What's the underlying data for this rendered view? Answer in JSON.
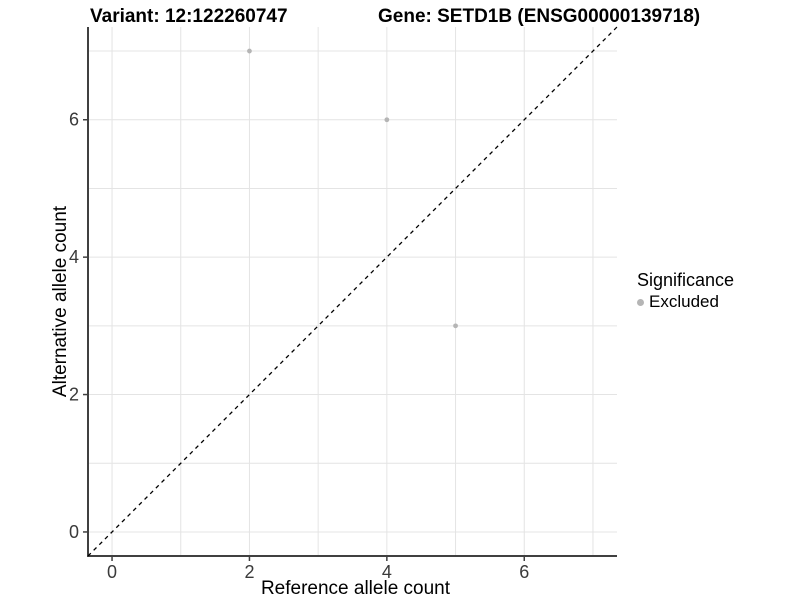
{
  "chart_data": {
    "type": "scatter",
    "title_left": "Variant: 12:122260747",
    "title_right": "Gene: SETD1B (ENSG00000139718)",
    "xlabel": "Reference allele count",
    "ylabel": "Alternative allele count",
    "xlim": [
      -0.35,
      7.35
    ],
    "ylim": [
      -0.35,
      7.35
    ],
    "x_ticks": [
      0,
      2,
      4,
      6
    ],
    "y_ticks": [
      0,
      2,
      4,
      6
    ],
    "grid_positions": [
      0,
      1,
      2,
      3,
      4,
      5,
      6,
      7
    ],
    "series": [
      {
        "name": "Excluded",
        "color": "#b5b5b5",
        "points": [
          {
            "x": 2,
            "y": 7
          },
          {
            "x": 4,
            "y": 6
          },
          {
            "x": 5,
            "y": 3
          }
        ]
      }
    ],
    "identity_line": {
      "style": "dashed",
      "from": [
        -0.35,
        -0.35
      ],
      "to": [
        7.35,
        7.35
      ],
      "color": "#000000"
    },
    "legend": {
      "title": "Significance",
      "position": "right",
      "entries": [
        {
          "label": "Excluded",
          "color": "#b5b5b5"
        }
      ]
    },
    "colors": {
      "axis": "#404040",
      "tick_label": "#3a3a3a",
      "grid": "#e4e4e4",
      "text": "#000000"
    }
  }
}
